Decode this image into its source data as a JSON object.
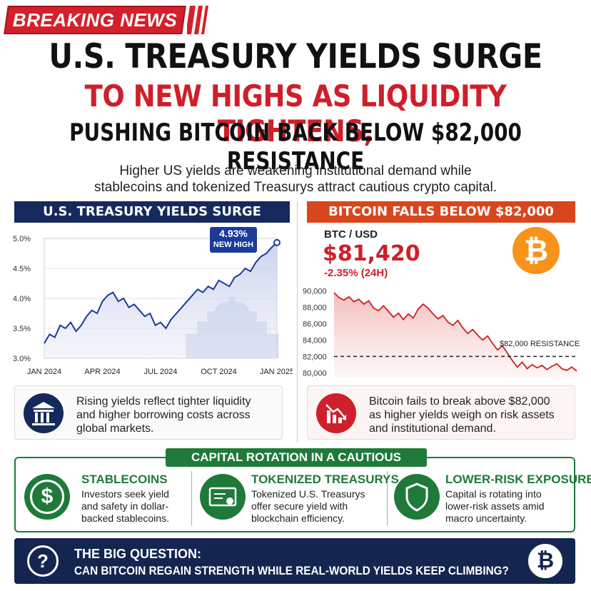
{
  "badge": "BREAKING NEWS",
  "headline": {
    "line1": "U.S. TREASURY YIELDS SURGE",
    "line2": "TO NEW HIGHS AS LIQUIDITY TIGHTENS,",
    "line3": "PUSHING BITCOIN BACK BELOW $82,000 RESISTANCE"
  },
  "subtitle": {
    "line1": "Higher US yields are weakening institutional demand while",
    "line2": "stablecoins and tokenized Treasurys attract cautious crypto capital."
  },
  "left_panel": {
    "title": "U.S. TREASURY YIELDS SURGE",
    "callout_value": "4.93%",
    "callout_label": "NEW HIGH",
    "info": [
      "Rising yields reflect tighter liquidity",
      "and higher borrowing costs across",
      "global markets."
    ]
  },
  "right_panel": {
    "title": "BITCOIN FALLS BELOW $82,000",
    "pair": "BTC / USD",
    "price": "$81,420",
    "change": "-2.35% (24H)",
    "resistance_label": "$82,000 RESISTANCE",
    "info": [
      "Bitcoin fails to break above $82,000",
      "as higher yields weigh on risk assets",
      "and institutional demand."
    ]
  },
  "capital_rotation": {
    "title": "CAPITAL ROTATION IN A CAUTIOUS MARKET",
    "items": [
      {
        "title": "STABLECOINS",
        "text": [
          "Investors seek yield",
          "and safety in dollar-",
          "backed stablecoins."
        ],
        "icon": "dollar-icon"
      },
      {
        "title": "TOKENIZED TREASURYS",
        "text": [
          "Tokenized U.S. Treasurys",
          "offer secure yield with",
          "blockchain efficiency."
        ],
        "icon": "certificate-icon"
      },
      {
        "title": "LOWER-RISK EXPOSURE",
        "text": [
          "Capital is rotating into",
          "lower-risk assets amid",
          "macro uncertainty."
        ],
        "icon": "shield-icon"
      }
    ]
  },
  "big_question": {
    "title": "THE BIG QUESTION:",
    "text": "CAN BITCOIN REGAIN STRENGTH WHILE REAL-WORLD YIELDS KEEP CLIMBING?"
  },
  "colors": {
    "navy": "#16295c",
    "red": "#cf1f2a",
    "orange": "#d9461d",
    "green": "#1f7a3a",
    "btc_orange": "#f7931a"
  },
  "chart_data": [
    {
      "type": "line",
      "xlabels": [
        "JAN 2024",
        "APR 2024",
        "JUL 2024",
        "OCT 2024",
        "JAN 2025"
      ],
      "yticks": [
        "5.0%",
        "4.5%",
        "4.0%",
        "3.5%",
        "3.0%"
      ],
      "ylim": [
        3.0,
        5.0
      ],
      "series": [
        {
          "values": [
            3.25,
            3.4,
            3.35,
            3.55,
            3.5,
            3.6,
            3.45,
            3.55,
            3.7,
            3.8,
            3.75,
            3.95,
            4.05,
            4.1,
            3.95,
            4.0,
            3.85,
            3.9,
            3.8,
            3.7,
            3.75,
            3.55,
            3.6,
            3.5,
            3.65,
            3.75,
            3.85,
            3.95,
            4.05,
            4.15,
            4.1,
            4.2,
            4.15,
            4.3,
            4.25,
            4.2,
            4.35,
            4.4,
            4.5,
            4.45,
            4.6,
            4.7,
            4.75,
            4.85,
            4.93
          ]
        }
      ],
      "annotation": "4.93% NEW HIGH"
    },
    {
      "type": "line",
      "yticks": [
        "90,000",
        "88,000",
        "86,000",
        "84,000",
        "82,000",
        "80,000"
      ],
      "ylim": [
        79500,
        90500
      ],
      "series": [
        {
          "values": [
            89800,
            89200,
            88900,
            89300,
            88700,
            89000,
            88400,
            88800,
            87900,
            87600,
            88200,
            87500,
            86800,
            87300,
            86500,
            87200,
            86700,
            87800,
            88400,
            87900,
            87200,
            86600,
            87000,
            86200,
            85800,
            86400,
            85500,
            84800,
            85300,
            84600,
            84000,
            84500,
            83600,
            82800,
            83300,
            82400,
            81500,
            80700,
            81300,
            80500,
            81000,
            80600,
            80900,
            80400,
            80800,
            81100,
            80500,
            80300,
            80700,
            80200
          ]
        }
      ],
      "reference_line": 82000
    }
  ]
}
